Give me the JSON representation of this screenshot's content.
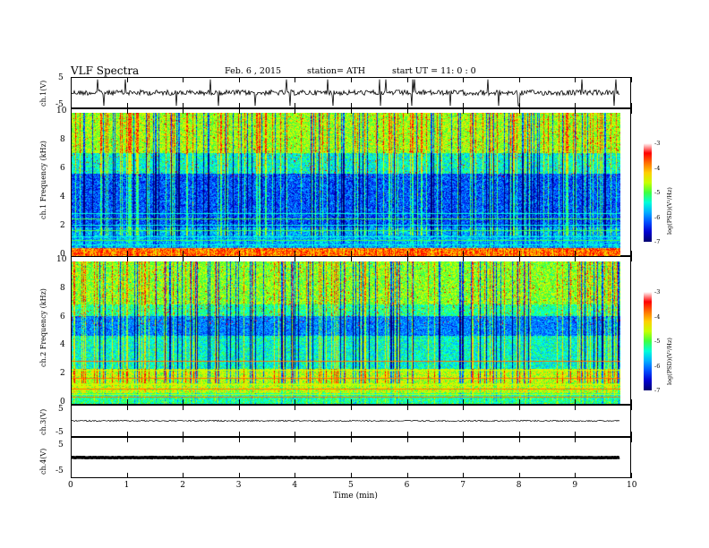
{
  "header": {
    "title": "VLF  Spectra",
    "date": "Feb. 6  , 2015",
    "station": "station= ATH",
    "start": "start  UT  =   11: 0  : 0"
  },
  "colors": {
    "cmap": [
      "#000070",
      "#0000d0",
      "#0050ff",
      "#00b0ff",
      "#00ffd8",
      "#40ff40",
      "#c8ff00",
      "#ffd000",
      "#ff7000",
      "#ff0000",
      "#ffffff"
    ]
  },
  "chart_data": [
    {
      "type": "line",
      "panel": "ch1",
      "ylabel": "ch.1(V)",
      "ylim": [
        -5,
        5
      ],
      "yticks": [
        "5",
        "-5"
      ]
    },
    {
      "type": "heatmap",
      "panel": "spec1",
      "ylabel": "ch.1  Frequency  (kHz)",
      "ylim": [
        0,
        10
      ],
      "yticks": [
        "10",
        "8",
        "6",
        "4",
        "2",
        "0"
      ],
      "colorbar": {
        "label": "log(PSD)(V²/Hz)",
        "range": [
          -7,
          -3
        ],
        "ticks": [
          "-3",
          "-4",
          "-5",
          "-6",
          "-7"
        ]
      }
    },
    {
      "type": "heatmap",
      "panel": "spec2",
      "ylabel": "ch.2  Frequency  (kHz)",
      "ylim": [
        0,
        10
      ],
      "yticks": [
        "10",
        "8",
        "6",
        "4",
        "2",
        "0"
      ],
      "colorbar": {
        "label": "log(PSD)(V²/Hz)",
        "range": [
          -7,
          -3
        ],
        "ticks": [
          "-3",
          "-4",
          "-5",
          "-6",
          "-7"
        ]
      }
    },
    {
      "type": "line",
      "panel": "ch3",
      "ylabel": "ch.3(V)",
      "ylim": [
        -5,
        5
      ],
      "yticks": [
        "5",
        "-5"
      ]
    },
    {
      "type": "line",
      "panel": "ch4",
      "ylabel": "ch.4(V)",
      "ylim": [
        -5,
        5
      ],
      "yticks": [
        "5",
        "-5"
      ]
    }
  ],
  "xaxis": {
    "label": "Time  (min)",
    "range": [
      0,
      10
    ],
    "ticks": [
      "0",
      "1",
      "2",
      "3",
      "4",
      "5",
      "6",
      "7",
      "8",
      "9",
      "10"
    ],
    "data_end": 9.8
  }
}
